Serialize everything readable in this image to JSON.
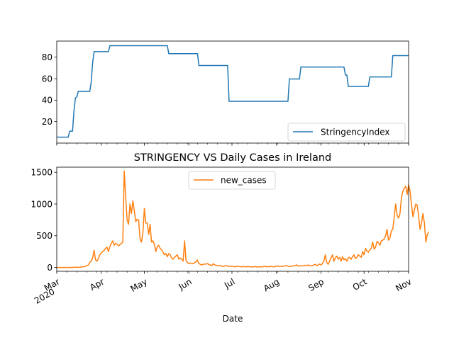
{
  "chart_data": [
    {
      "type": "line",
      "title": "",
      "ylim": [
        0,
        95
      ],
      "yticks": [
        20,
        40,
        60,
        80
      ],
      "grid": false,
      "legend_position": "lower-right",
      "series": [
        {
          "name": "StringencyIndex",
          "color": "#1f77b4",
          "points": [
            [
              "2020-03-01",
              5.56
            ],
            [
              "2020-03-09",
              5.56
            ],
            [
              "2020-03-10",
              11.11
            ],
            [
              "2020-03-12",
              11.11
            ],
            [
              "2020-03-13",
              30.0
            ],
            [
              "2020-03-14",
              42.0
            ],
            [
              "2020-03-15",
              43.0
            ],
            [
              "2020-03-16",
              48.15
            ],
            [
              "2020-03-20",
              48.15
            ],
            [
              "2020-03-24",
              48.15
            ],
            [
              "2020-03-25",
              57.0
            ],
            [
              "2020-03-26",
              75.0
            ],
            [
              "2020-03-27",
              85.19
            ],
            [
              "2020-04-06",
              85.19
            ],
            [
              "2020-04-07",
              90.74
            ],
            [
              "2020-05-17",
              90.74
            ],
            [
              "2020-05-18",
              83.33
            ],
            [
              "2020-06-07",
              83.33
            ],
            [
              "2020-06-08",
              72.22
            ],
            [
              "2020-06-28",
              72.22
            ],
            [
              "2020-06-29",
              38.89
            ],
            [
              "2020-08-09",
              38.89
            ],
            [
              "2020-08-10",
              59.72
            ],
            [
              "2020-08-17",
              59.72
            ],
            [
              "2020-08-18",
              70.83
            ],
            [
              "2020-09-17",
              70.83
            ],
            [
              "2020-09-18",
              63.43
            ],
            [
              "2020-09-19",
              63.43
            ],
            [
              "2020-09-20",
              52.78
            ],
            [
              "2020-10-04",
              52.78
            ],
            [
              "2020-10-05",
              61.57
            ],
            [
              "2020-10-20",
              61.57
            ],
            [
              "2020-10-21",
              81.48
            ],
            [
              "2020-11-01",
              81.48
            ]
          ]
        }
      ]
    },
    {
      "type": "line",
      "title": "STRINGENCY VS Daily Cases in Ireland",
      "xlabel": "Date",
      "ylim": [
        -60,
        1580
      ],
      "yticks": [
        0,
        500,
        1000,
        1500
      ],
      "grid": false,
      "legend_position": "upper-center",
      "x_tick_labels": [
        {
          "date": "2020-03-01",
          "label": "Mar",
          "sublabel": "2020"
        },
        {
          "date": "2020-04-01",
          "label": "Apr"
        },
        {
          "date": "2020-05-01",
          "label": "May"
        },
        {
          "date": "2020-06-01",
          "label": "Jun"
        },
        {
          "date": "2020-07-01",
          "label": "Jul"
        },
        {
          "date": "2020-08-01",
          "label": "Aug"
        },
        {
          "date": "2020-09-01",
          "label": "Sep"
        },
        {
          "date": "2020-10-01",
          "label": "Oct"
        },
        {
          "date": "2020-11-01",
          "label": "Nov"
        }
      ],
      "series": [
        {
          "name": "new_cases",
          "color": "#ff7f0e",
          "start_date": "2020-03-01",
          "values": [
            0,
            0,
            0,
            0,
            0,
            0,
            0,
            0,
            0,
            0,
            0,
            0,
            5,
            3,
            5,
            2,
            4,
            8,
            10,
            12,
            18,
            30,
            40,
            80,
            100,
            150,
            270,
            120,
            100,
            140,
            200,
            230,
            250,
            270,
            300,
            320,
            250,
            330,
            380,
            420,
            350,
            380,
            370,
            340,
            360,
            380,
            400,
            1520,
            1100,
            750,
            680,
            1000,
            850,
            1050,
            900,
            720,
            760,
            750,
            450,
            400,
            550,
            930,
            700,
            700,
            520,
            680,
            400,
            420,
            360,
            250,
            330,
            350,
            300,
            280,
            240,
            200,
            220,
            170,
            220,
            200,
            150,
            130,
            160,
            180,
            200,
            130,
            150,
            130,
            100,
            420,
            110,
            80,
            60,
            70,
            65,
            60,
            75,
            90,
            120,
            60,
            50,
            40,
            50,
            55,
            55,
            60,
            45,
            40,
            30,
            60,
            40,
            35,
            30,
            25,
            30,
            20,
            15,
            25,
            30,
            20,
            20,
            15,
            20,
            15,
            10,
            15,
            20,
            15,
            12,
            10,
            15,
            12,
            10,
            15,
            12,
            10,
            8,
            10,
            15,
            10,
            8,
            10,
            10,
            10,
            15,
            20,
            10,
            15,
            10,
            20,
            15,
            10,
            15,
            20,
            25,
            15,
            20,
            15,
            20,
            25,
            30,
            20,
            15,
            20,
            20,
            25,
            30,
            40,
            25,
            20,
            30,
            25,
            30,
            35,
            30,
            40,
            30,
            25,
            30,
            40,
            50,
            30,
            40,
            55,
            40,
            60,
            100,
            200,
            80,
            50,
            100,
            150,
            200,
            100,
            150,
            180,
            130,
            160,
            100,
            170,
            120,
            140,
            100,
            150,
            160,
            130,
            170,
            200,
            140,
            160,
            200,
            180,
            160,
            250,
            200,
            300,
            260,
            240,
            280,
            300,
            400,
            290,
            320,
            410,
            390,
            350,
            420,
            430,
            450,
            500,
            600,
            430,
            460,
            580,
            600,
            800,
            1000,
            820,
            780,
            850,
            1100,
            1200,
            1250,
            1280,
            1150,
            1300,
            1200,
            1000,
            800,
            900,
            1000,
            980,
            800,
            600,
            700,
            850,
            700,
            400,
            520,
            560
          ]
        }
      ]
    }
  ]
}
